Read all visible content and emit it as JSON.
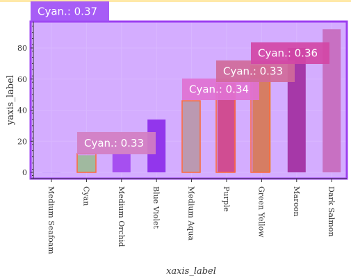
{
  "chart_data": {
    "type": "bar",
    "xlabel": "xaxis_label",
    "ylabel": "yaxis_label",
    "ylim": [
      -4,
      97
    ],
    "yticks": [
      0,
      20,
      40,
      60,
      80
    ],
    "grid": true,
    "categories": [
      "Medium Seafoam",
      "Cyan",
      "Medium Orchid",
      "Blue Violet",
      "Medium Aqua",
      "Purple",
      "Green Yellow",
      "Maroon",
      "Dark Salmon"
    ],
    "values": [
      0,
      11,
      12,
      34,
      46,
      57,
      68,
      80,
      92
    ],
    "bar_colors": [
      "#c59cff",
      "#86d98c",
      "#a64ff0",
      "#9236ec",
      "#a8b0a0",
      "#d03e8e",
      "#d89a40",
      "#a638a8",
      "#c870c2"
    ]
  },
  "detections": [
    {
      "label": "Cyan.: 0.37",
      "color": "#9f4ff5"
    },
    {
      "label": "Cyan.: 0.33",
      "color": "#d27ec2"
    },
    {
      "label": "Cyan.: 0.34",
      "color": "#e071d2"
    },
    {
      "label": "Cyan.: 0.33",
      "color": "#d06a9a"
    },
    {
      "label": "Cyan.: 0.36",
      "color": "#d347a6"
    }
  ],
  "colors": {
    "plot_overlay": "#c896ff",
    "plot_border": "#9c3ff0",
    "grid": "#d9b7ff"
  }
}
